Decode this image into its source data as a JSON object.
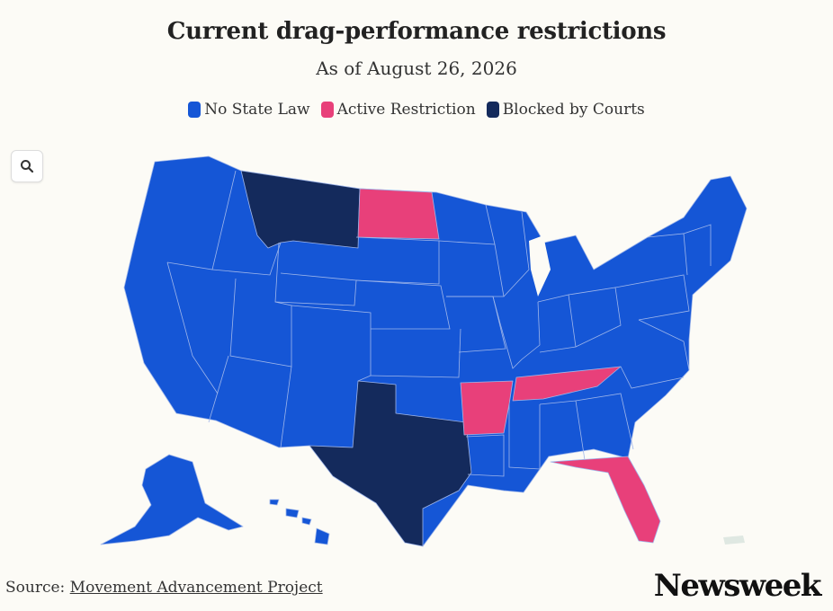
{
  "header": {
    "title": "Current drag-performance restrictions",
    "subtitle": "As of August 26, 2026"
  },
  "legend": [
    {
      "label": "No State Law",
      "color": "#1556d6",
      "status": "none"
    },
    {
      "label": "Active Restriction",
      "color": "#e8407a",
      "status": "active"
    },
    {
      "label": "Blocked by Courts",
      "color": "#142a5c",
      "status": "blocked"
    }
  ],
  "map": {
    "region": "United States",
    "zoom_icon": "search-icon",
    "border_color": "#9fb6ea",
    "states": {
      "Montana": "blocked",
      "Texas": "blocked",
      "North Dakota": "active",
      "Arkansas": "active",
      "Tennessee": "active",
      "Florida": "active",
      "default": "none"
    }
  },
  "footer": {
    "source_prefix": "Source: ",
    "source_link": "Movement Advancement Project",
    "brand": "Newsweek"
  }
}
